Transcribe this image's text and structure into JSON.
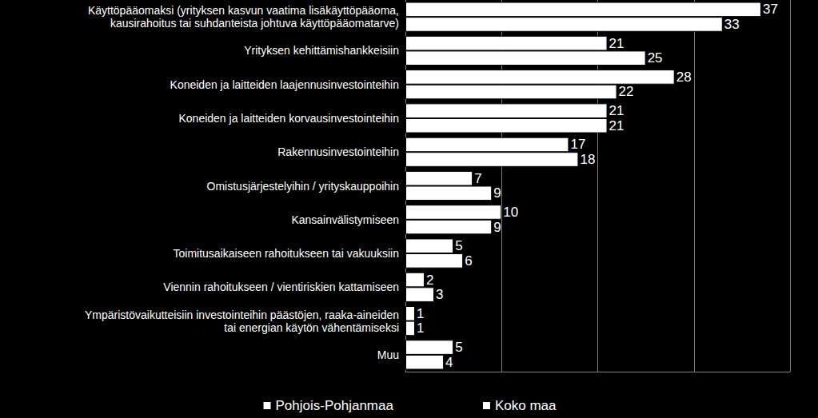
{
  "chart_data": {
    "type": "bar",
    "orientation": "horizontal",
    "categories": [
      "Käyttöpääomaksi (yrityksen kasvun vaatima lisäkäyttöpääoma,\nkausirahoitus tai suhdanteista johtuva käyttöpääomatarve)",
      "Yrityksen kehittämishankkeisiin",
      "Koneiden ja laitteiden laajennusinvestointeihin",
      "Koneiden ja laitteiden korvausinvestointeihin",
      "Rakennusinvestointeihin",
      "Omistusjärjestelyihin / yrityskauppoihin",
      "Kansainvälistymiseen",
      "Toimitusaikaiseen rahoitukseen tai vakuuksiin",
      "Viennin rahoitukseen / vientiriskien kattamiseen",
      "Ympäristövaikutteisiin investointeihin päästöjen, raaka-aineiden\ntai energian käytön vähentämiseksi",
      "Muu"
    ],
    "series": [
      {
        "name": "Pohjois-Pohjanmaa",
        "color": "#ffffff",
        "values": [
          37,
          21,
          28,
          21,
          17,
          7,
          10,
          5,
          2,
          1,
          5
        ]
      },
      {
        "name": "Koko maa",
        "color": "#ffffff",
        "values": [
          33,
          25,
          22,
          21,
          18,
          9,
          9,
          6,
          3,
          1,
          4
        ]
      }
    ],
    "xlim": [
      0,
      40
    ],
    "xticks": [
      0,
      10,
      20,
      30,
      40
    ],
    "grid": true,
    "legend": "bottom",
    "data_labels": true,
    "tick_labels": "y"
  }
}
